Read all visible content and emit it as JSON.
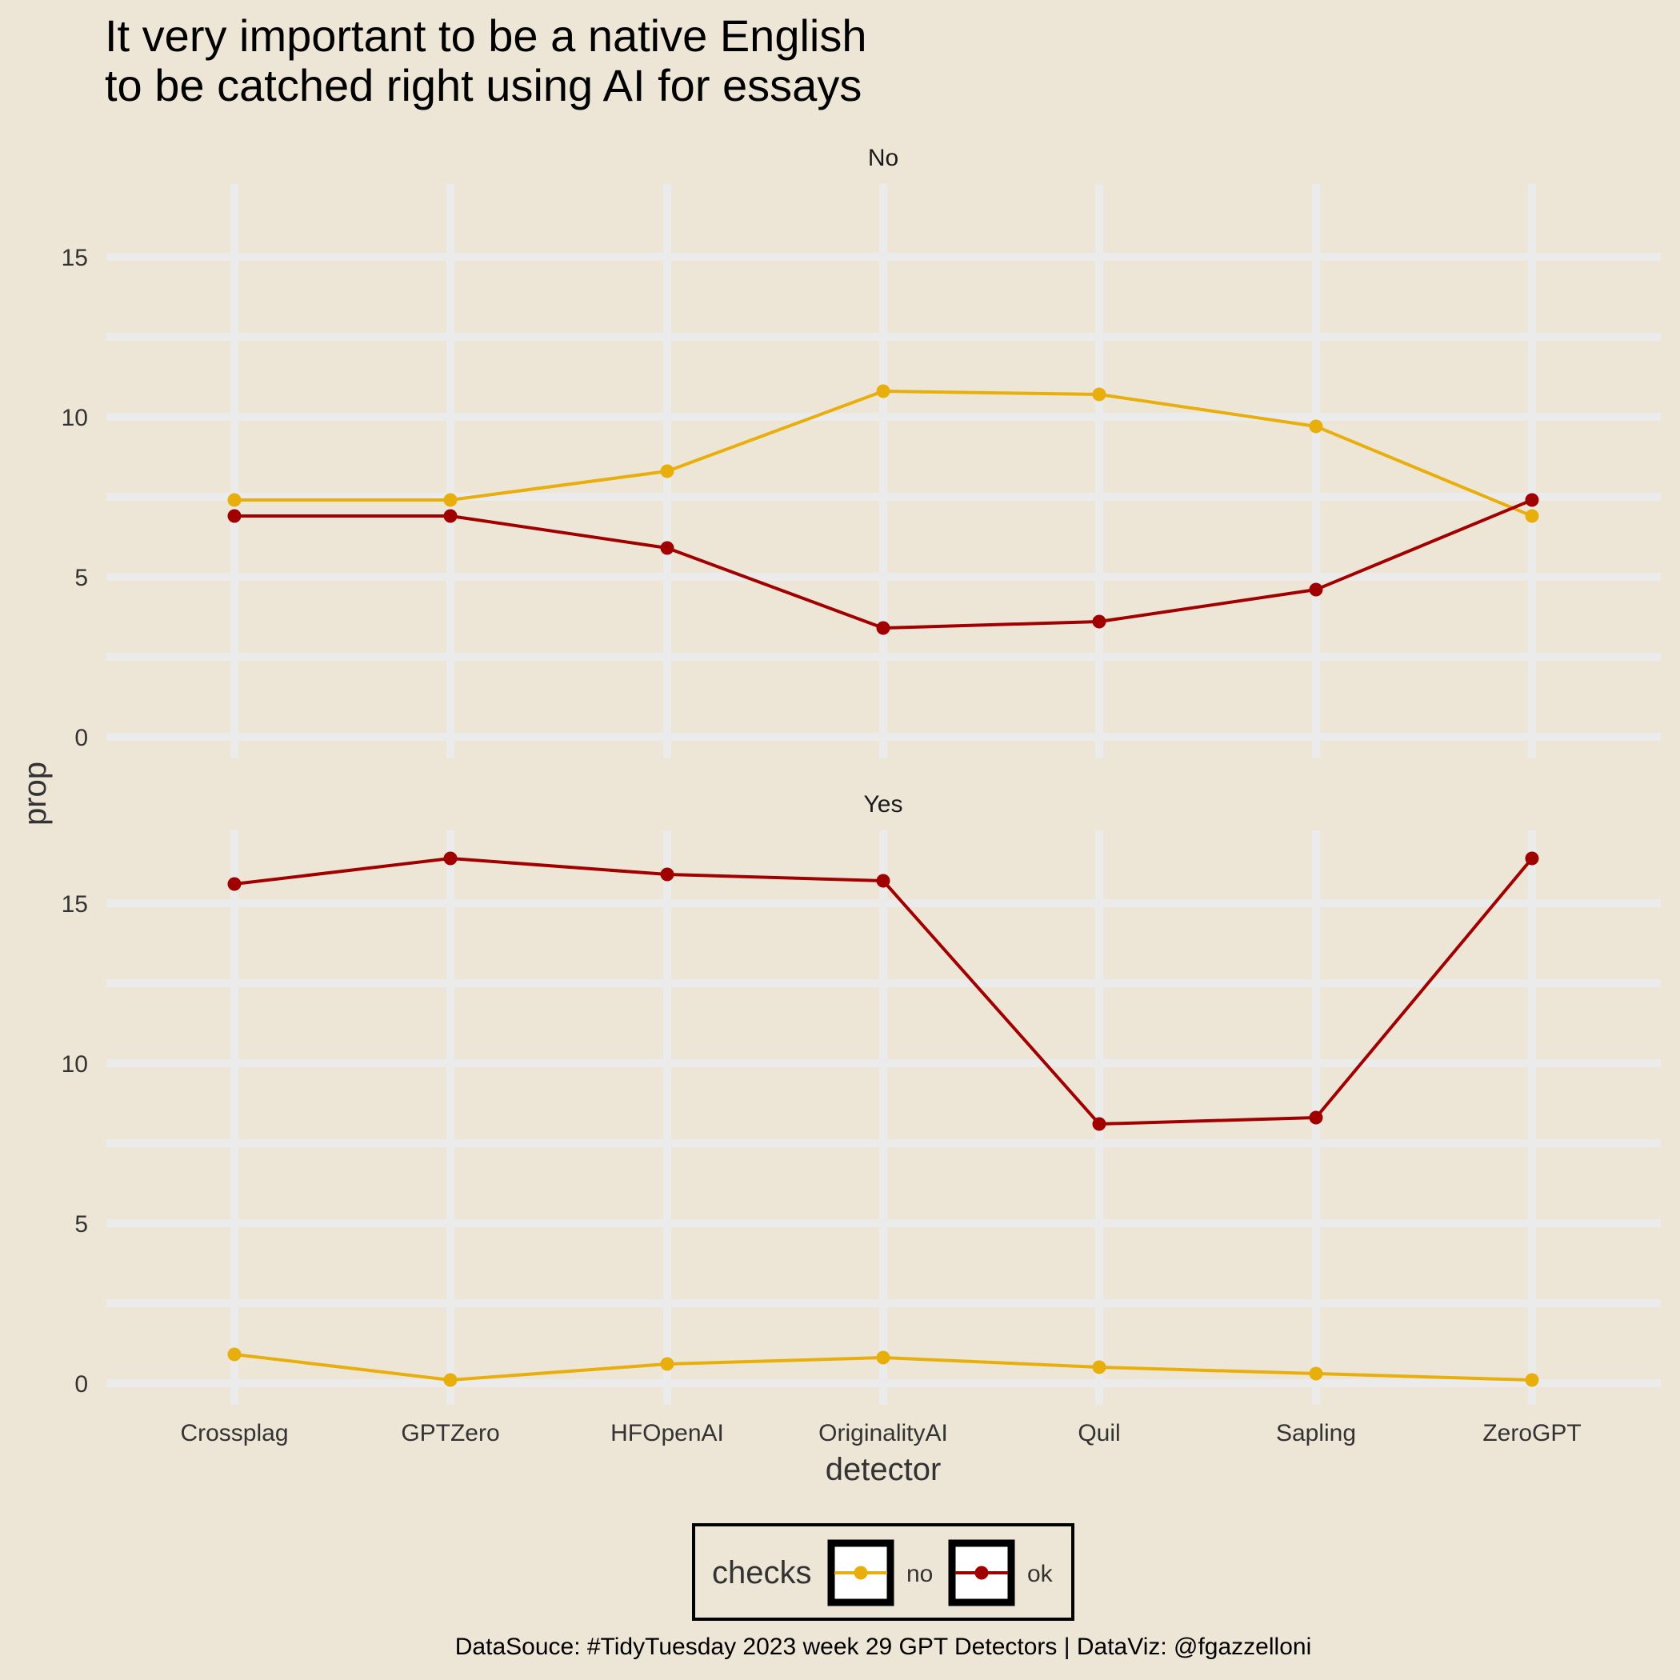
{
  "chart_data": {
    "type": "line",
    "title": "It very important to be a native English\nto be catched right using AI for essays",
    "caption": "DataSouce: #TidyTuesday 2023 week 29 GPT Detectors | DataViz: @fgazzelloni",
    "xlabel": "detector",
    "ylabel": "prop",
    "categories": [
      "Crossplag",
      "GPTZero",
      "HFOpenAI",
      "OriginalityAI",
      "Quil",
      "Sapling",
      "ZeroGPT"
    ],
    "ylim": [
      0,
      17
    ],
    "yticks": [
      0,
      5,
      10,
      15
    ],
    "grid": true,
    "legend": {
      "title": "checks",
      "position": "bottom",
      "entries": [
        {
          "name": "no",
          "color": "#E8AE0C"
        },
        {
          "name": "ok",
          "color": "#A00000"
        }
      ]
    },
    "panels": [
      {
        "label": "No",
        "series": [
          {
            "name": "no",
            "color": "#E8AE0C",
            "values": [
              7.4,
              7.4,
              8.3,
              10.8,
              10.7,
              9.7,
              6.9
            ]
          },
          {
            "name": "ok",
            "color": "#A00000",
            "values": [
              6.9,
              6.9,
              5.9,
              3.4,
              3.6,
              4.6,
              7.4
            ]
          }
        ]
      },
      {
        "label": "Yes",
        "series": [
          {
            "name": "no",
            "color": "#E8AE0C",
            "values": [
              0.9,
              0.1,
              0.6,
              0.8,
              0.5,
              0.3,
              0.1
            ]
          },
          {
            "name": "ok",
            "color": "#A00000",
            "values": [
              15.6,
              16.4,
              15.9,
              15.7,
              8.1,
              8.3,
              16.4
            ]
          }
        ]
      }
    ]
  }
}
